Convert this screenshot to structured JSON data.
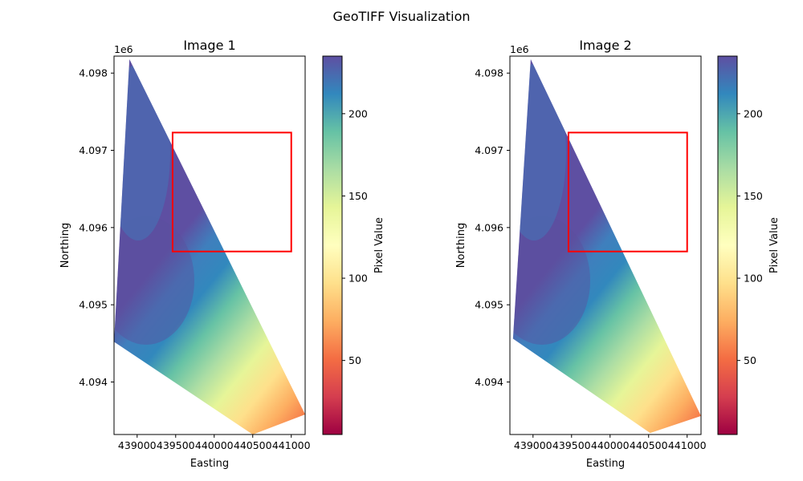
{
  "figure_title": "GeoTIFF Visualization",
  "colorbar_label": "Pixel Value",
  "axis_offset_label": "1e6",
  "chart_data": [
    {
      "type": "heatmap",
      "title": "Image 1",
      "xlabel": "Easting",
      "ylabel": "Northing",
      "xlim": [
        438700,
        441180
      ],
      "ylim": [
        4093320,
        4098220
      ],
      "x_ticks": [
        439000,
        439500,
        440000,
        440500,
        441000
      ],
      "x_tick_labels": [
        "439000",
        "439500",
        "440000",
        "440500",
        "441000"
      ],
      "y_ticks": [
        4094000,
        4095000,
        4096000,
        4097000,
        4098000
      ],
      "y_tick_labels": [
        "4.094",
        "4.095",
        "4.096",
        "4.097",
        "4.098"
      ],
      "footprint": [
        [
          438900,
          4098180
        ],
        [
          441180,
          4093580
        ],
        [
          440500,
          4093320
        ],
        [
          438700,
          4094520
        ]
      ],
      "highlight_box": {
        "x": [
          439460,
          441000
        ],
        "y": [
          4095690,
          4097230
        ]
      },
      "highlight_color": "#ff0000",
      "colorbar": {
        "colormap": "Spectral",
        "range": [
          5,
          235
        ],
        "ticks": [
          50,
          100,
          150,
          200
        ],
        "tick_labels": [
          "50",
          "100",
          "150",
          "200"
        ],
        "label": "Pixel Value"
      }
    },
    {
      "type": "heatmap",
      "title": "Image 2",
      "xlabel": "Easting",
      "ylabel": "Northing",
      "xlim": [
        438700,
        441180
      ],
      "ylim": [
        4093320,
        4098220
      ],
      "x_ticks": [
        439000,
        439500,
        440000,
        440500,
        441000
      ],
      "x_tick_labels": [
        "439000",
        "439500",
        "440000",
        "440500",
        "441000"
      ],
      "y_ticks": [
        4094000,
        4095000,
        4096000,
        4097000,
        4098000
      ],
      "y_tick_labels": [
        "4.094",
        "4.095",
        "4.096",
        "4.097",
        "4.098"
      ],
      "footprint": [
        [
          438970,
          4098180
        ],
        [
          441180,
          4093560
        ],
        [
          440520,
          4093340
        ],
        [
          438740,
          4094560
        ]
      ],
      "highlight_box": {
        "x": [
          439460,
          441000
        ],
        "y": [
          4095690,
          4097230
        ]
      },
      "highlight_color": "#ff0000",
      "colorbar": {
        "colormap": "Spectral",
        "range": [
          5,
          235
        ],
        "ticks": [
          50,
          100,
          150,
          200
        ],
        "tick_labels": [
          "50",
          "100",
          "150",
          "200"
        ],
        "label": "Pixel Value"
      }
    }
  ],
  "colormap_stops": [
    "#9e0142",
    "#d53e4f",
    "#f46d43",
    "#fdae61",
    "#fee08b",
    "#ffffbf",
    "#e6f598",
    "#abdda4",
    "#66c2a5",
    "#3288bd",
    "#5e4fa2"
  ]
}
